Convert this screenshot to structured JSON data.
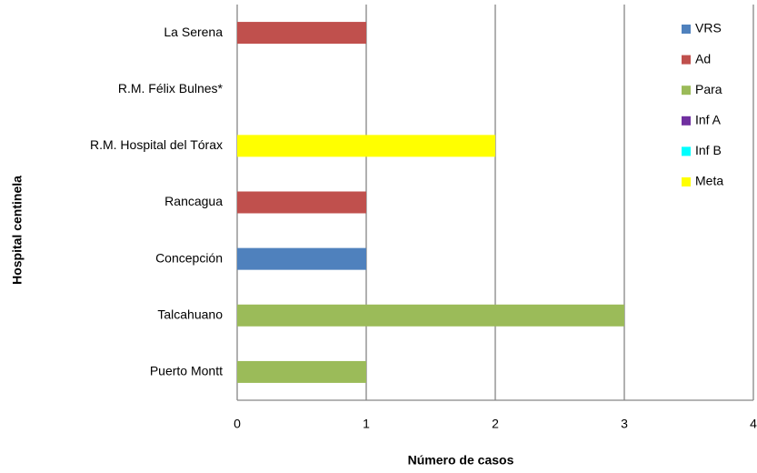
{
  "chart_data": {
    "type": "stacked_barh",
    "x_label": "Número de casos",
    "y_label": "Hospital centinela",
    "categories": [
      "La Serena",
      "R.M. Félix Bulnes*",
      "R.M. Hospital del Tórax",
      "Rancagua",
      "Concepción",
      "Talcahuano",
      "Puerto Montt"
    ],
    "series": [
      {
        "name": "VRS",
        "color": "#4f81bd",
        "values": [
          0,
          0,
          0,
          0,
          1,
          0,
          0
        ]
      },
      {
        "name": "Ad",
        "color": "#c0504d",
        "values": [
          1,
          0,
          0,
          1,
          0,
          0,
          0
        ]
      },
      {
        "name": "Para",
        "color": "#9bbb59",
        "values": [
          0,
          0,
          0,
          0,
          0,
          3,
          1
        ]
      },
      {
        "name": "Inf A",
        "color": "#7030a0",
        "values": [
          0,
          0,
          0,
          0,
          0,
          0,
          0
        ]
      },
      {
        "name": "Inf B",
        "color": "#00ffff",
        "values": [
          0,
          0,
          0,
          0,
          0,
          0,
          0
        ]
      },
      {
        "name": "Meta",
        "color": "#ffff00",
        "values": [
          0,
          0,
          2,
          0,
          0,
          0,
          0
        ]
      }
    ],
    "xlim": [
      0,
      4
    ],
    "xticks": [
      0,
      1,
      2,
      3,
      4
    ],
    "grid": true,
    "legend": "right"
  }
}
